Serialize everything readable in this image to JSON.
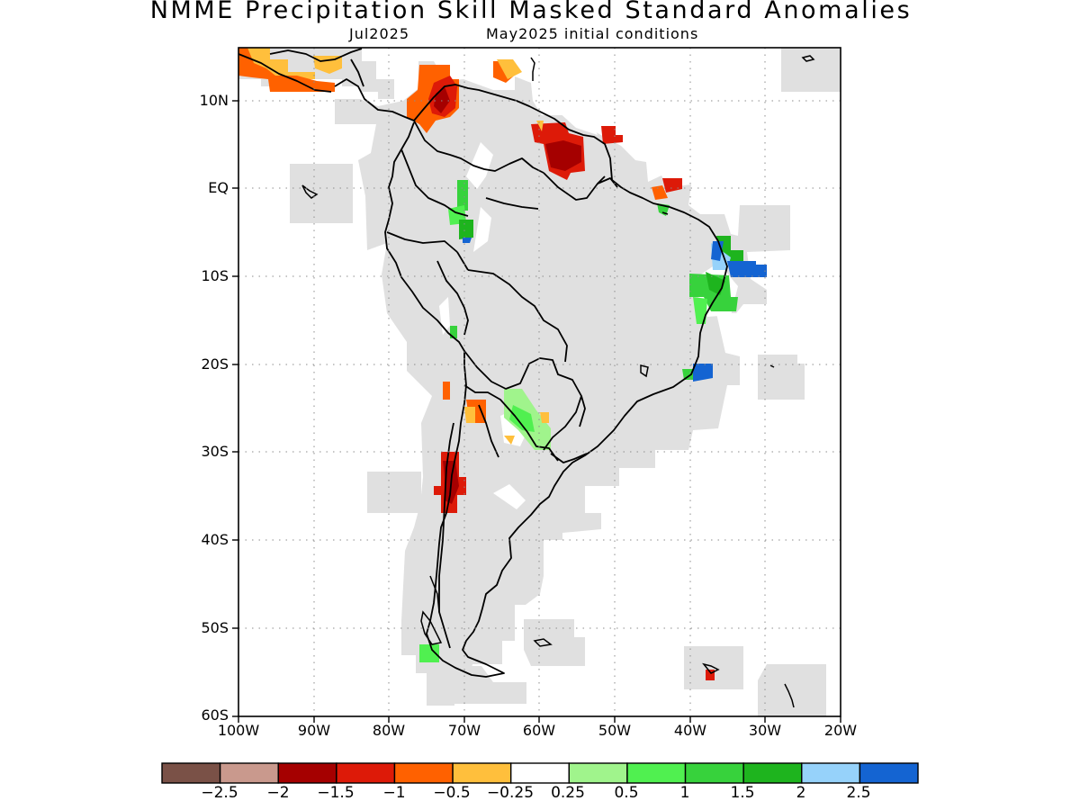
{
  "title": "NMME Precipitation Skill Masked Standard Anomalies",
  "subtitle_left": "Jul2025",
  "subtitle_right": "May2025 initial conditions",
  "lat_labels": [
    "10N",
    "EQ",
    "10S",
    "20S",
    "30S",
    "40S",
    "50S",
    "60S"
  ],
  "lon_labels": [
    "100W",
    "90W",
    "80W",
    "70W",
    "60W",
    "50W",
    "40W",
    "30W",
    "20W"
  ],
  "colorbar": {
    "colors": [
      "#7a5147",
      "#c9998d",
      "#a50000",
      "#dd1a08",
      "#ff6100",
      "#ffbf3c",
      "#ffffff",
      "#a0f48c",
      "#50f050",
      "#37d23c",
      "#1eb41e",
      "#96d2fa",
      "#1464d2"
    ],
    "labels": [
      "−2.5",
      "−2",
      "−1.5",
      "−1",
      "−0.5",
      "−0.25",
      "0.25",
      "0.5",
      "1",
      "1.5",
      "2",
      "2.5"
    ]
  },
  "colors": {
    "mask_gray": "#e0e0e0",
    "coast": "#000000",
    "grid": "#8c8c8c"
  }
}
